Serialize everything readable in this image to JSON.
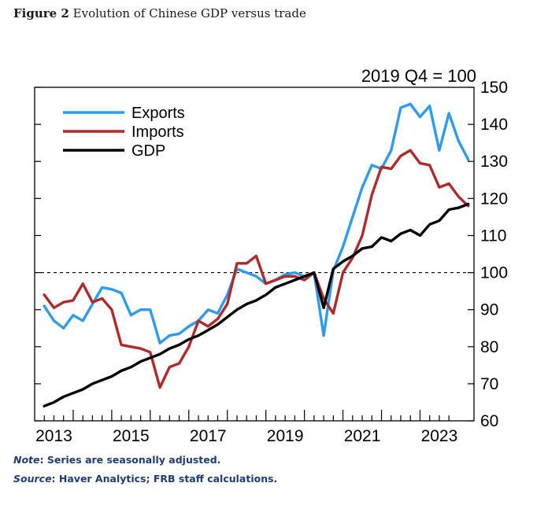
{
  "figure": {
    "label": "Figure 2",
    "title": "Evolution of Chinese GDP versus trade"
  },
  "notes": {
    "note_label": "Note",
    "note_text": ": Series are seasonally adjusted.",
    "source_label": "Source",
    "source_text": ": Haver Analytics; FRB staff calculations."
  },
  "colors": {
    "exports": "#2f9bf0",
    "imports": "#b02a2a",
    "gdp": "#000000"
  },
  "chart_data": {
    "type": "line",
    "units_label": "2019 Q4 = 100",
    "x_tick_labels": [
      "2013",
      "2015",
      "2017",
      "2019",
      "2021",
      "2023"
    ],
    "y_ticks": [
      60,
      70,
      80,
      90,
      100,
      110,
      120,
      130,
      140,
      150
    ],
    "ylim": [
      60,
      150
    ],
    "xlim": [
      2012.5,
      2023.9
    ],
    "reference_line": {
      "y": 100,
      "style": "dashed"
    },
    "legend_position": "top-left",
    "series": [
      {
        "name": "Exports",
        "color": "#2f9bf0",
        "points": [
          [
            2012.75,
            91
          ],
          [
            2013.0,
            87
          ],
          [
            2013.25,
            85
          ],
          [
            2013.5,
            88.5
          ],
          [
            2013.75,
            87
          ],
          [
            2014.0,
            91.5
          ],
          [
            2014.25,
            96
          ],
          [
            2014.5,
            95.5
          ],
          [
            2014.75,
            94.5
          ],
          [
            2015.0,
            88.5
          ],
          [
            2015.25,
            90
          ],
          [
            2015.5,
            90
          ],
          [
            2015.75,
            81
          ],
          [
            2016.0,
            83
          ],
          [
            2016.25,
            83.5
          ],
          [
            2016.5,
            85.5
          ],
          [
            2016.75,
            87
          ],
          [
            2017.0,
            90
          ],
          [
            2017.25,
            89
          ],
          [
            2017.5,
            94
          ],
          [
            2017.75,
            101
          ],
          [
            2018.0,
            100
          ],
          [
            2018.25,
            99
          ],
          [
            2018.5,
            97
          ],
          [
            2018.75,
            98
          ],
          [
            2019.0,
            99.5
          ],
          [
            2019.25,
            100
          ],
          [
            2019.5,
            99
          ],
          [
            2019.75,
            100
          ],
          [
            2020.0,
            83
          ],
          [
            2020.25,
            100.5
          ],
          [
            2020.5,
            107
          ],
          [
            2020.75,
            115
          ],
          [
            2021.0,
            123
          ],
          [
            2021.25,
            129
          ],
          [
            2021.5,
            128
          ],
          [
            2021.75,
            133
          ],
          [
            2022.0,
            144.5
          ],
          [
            2022.25,
            145.5
          ],
          [
            2022.5,
            142
          ],
          [
            2022.75,
            145
          ],
          [
            2023.0,
            133
          ],
          [
            2023.25,
            143
          ],
          [
            2023.5,
            135.5
          ],
          [
            2023.75,
            130.5
          ]
        ]
      },
      {
        "name": "Imports",
        "color": "#b02a2a",
        "points": [
          [
            2012.75,
            94
          ],
          [
            2013.0,
            90.5
          ],
          [
            2013.25,
            92
          ],
          [
            2013.5,
            92.5
          ],
          [
            2013.75,
            97
          ],
          [
            2014.0,
            92
          ],
          [
            2014.25,
            93
          ],
          [
            2014.5,
            90
          ],
          [
            2014.75,
            80.5
          ],
          [
            2015.0,
            80
          ],
          [
            2015.25,
            79.5
          ],
          [
            2015.5,
            78.5
          ],
          [
            2015.75,
            69
          ],
          [
            2016.0,
            74.5
          ],
          [
            2016.25,
            75.5
          ],
          [
            2016.5,
            80
          ],
          [
            2016.75,
            87
          ],
          [
            2017.0,
            85.5
          ],
          [
            2017.25,
            87.5
          ],
          [
            2017.5,
            91.5
          ],
          [
            2017.75,
            102.5
          ],
          [
            2018.0,
            102.5
          ],
          [
            2018.25,
            104.5
          ],
          [
            2018.5,
            97
          ],
          [
            2018.75,
            98
          ],
          [
            2019.0,
            99
          ],
          [
            2019.25,
            99
          ],
          [
            2019.5,
            98
          ],
          [
            2019.75,
            100
          ],
          [
            2020.0,
            93
          ],
          [
            2020.25,
            89
          ],
          [
            2020.5,
            100
          ],
          [
            2020.75,
            104
          ],
          [
            2021.0,
            110
          ],
          [
            2021.25,
            121
          ],
          [
            2021.5,
            128.5
          ],
          [
            2021.75,
            128
          ],
          [
            2022.0,
            131.5
          ],
          [
            2022.25,
            133
          ],
          [
            2022.5,
            129.5
          ],
          [
            2022.75,
            129
          ],
          [
            2023.0,
            123
          ],
          [
            2023.25,
            124
          ],
          [
            2023.5,
            120.5
          ],
          [
            2023.75,
            118
          ]
        ]
      },
      {
        "name": "GDP",
        "color": "#000000",
        "points": [
          [
            2012.75,
            64
          ],
          [
            2013.0,
            65
          ],
          [
            2013.25,
            66.5
          ],
          [
            2013.5,
            67.5
          ],
          [
            2013.75,
            68.5
          ],
          [
            2014.0,
            70
          ],
          [
            2014.25,
            71
          ],
          [
            2014.5,
            72
          ],
          [
            2014.75,
            73.5
          ],
          [
            2015.0,
            74.5
          ],
          [
            2015.25,
            76
          ],
          [
            2015.5,
            77
          ],
          [
            2015.75,
            78
          ],
          [
            2016.0,
            79.5
          ],
          [
            2016.25,
            80.5
          ],
          [
            2016.5,
            82
          ],
          [
            2016.75,
            83
          ],
          [
            2017.0,
            84.5
          ],
          [
            2017.25,
            86
          ],
          [
            2017.5,
            88
          ],
          [
            2017.75,
            90
          ],
          [
            2018.0,
            91.5
          ],
          [
            2018.25,
            92.5
          ],
          [
            2018.5,
            94
          ],
          [
            2018.75,
            96
          ],
          [
            2019.0,
            97
          ],
          [
            2019.25,
            98
          ],
          [
            2019.5,
            99
          ],
          [
            2019.75,
            100
          ],
          [
            2020.0,
            90.5
          ],
          [
            2020.25,
            101
          ],
          [
            2020.5,
            103
          ],
          [
            2020.75,
            104.5
          ],
          [
            2021.0,
            106.5
          ],
          [
            2021.25,
            107
          ],
          [
            2021.5,
            109.5
          ],
          [
            2021.75,
            108.5
          ],
          [
            2022.0,
            110.5
          ],
          [
            2022.25,
            111.5
          ],
          [
            2022.5,
            110
          ],
          [
            2022.75,
            113
          ],
          [
            2023.0,
            114
          ],
          [
            2023.25,
            117
          ],
          [
            2023.5,
            117.5
          ],
          [
            2023.75,
            118.5
          ]
        ]
      }
    ]
  }
}
